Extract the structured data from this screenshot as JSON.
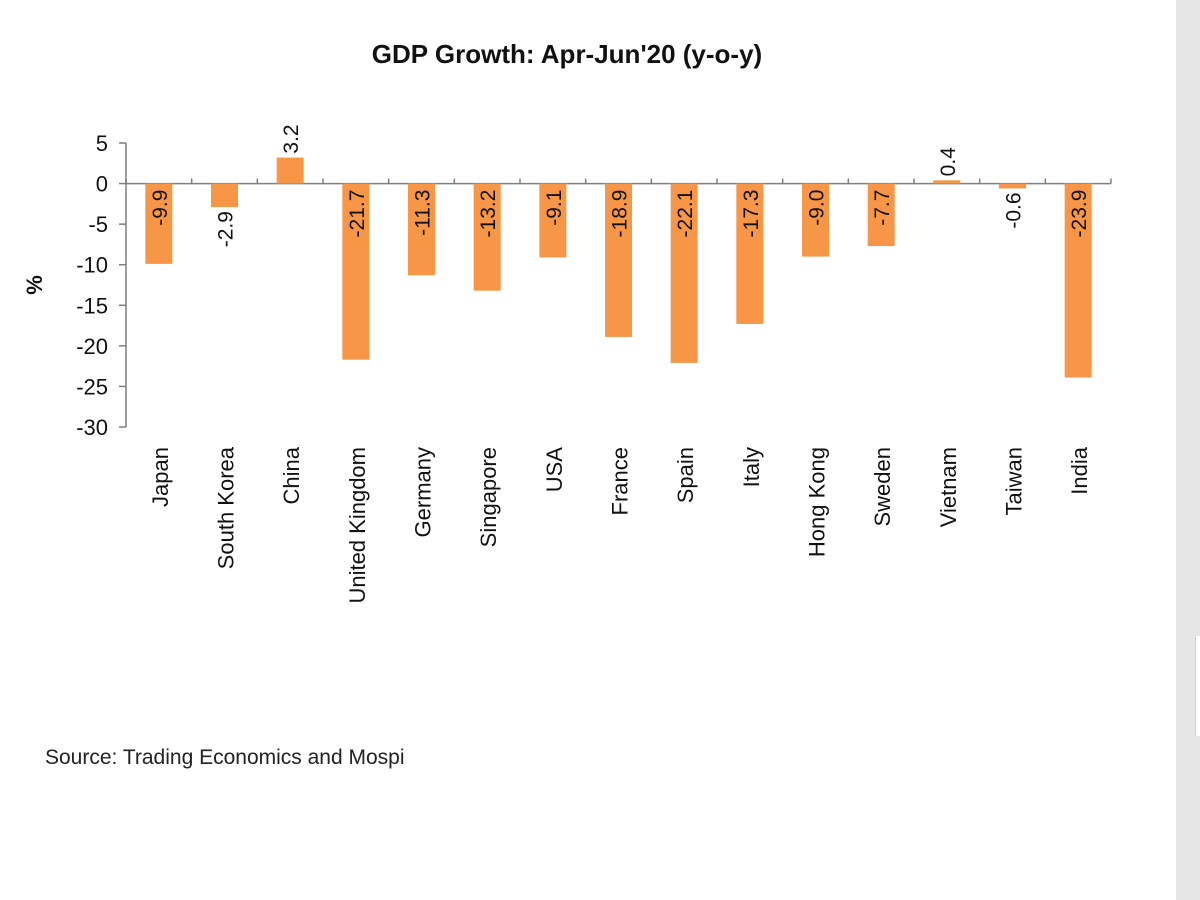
{
  "chart_data": {
    "type": "bar",
    "title": "GDP Growth: Apr-Jun'20 (y-o-y)",
    "xlabel": "",
    "ylabel": "%",
    "ylim": [
      -30,
      5
    ],
    "yticks": [
      5,
      0,
      -5,
      -10,
      -15,
      -20,
      -25,
      -30
    ],
    "categories": [
      "Japan",
      "South Korea",
      "China",
      "United Kingdom",
      "Germany",
      "Singapore",
      "USA",
      "France",
      "Spain",
      "Italy",
      "Hong Kong",
      "Sweden",
      "Vietnam",
      "Taiwan",
      "India"
    ],
    "values": [
      -9.9,
      -2.9,
      3.2,
      -21.7,
      -11.3,
      -13.2,
      -9.1,
      -18.9,
      -22.1,
      -17.3,
      -9.0,
      -7.7,
      0.4,
      -0.6,
      -23.9
    ],
    "data_labels": [
      "-9.9",
      "-2.9",
      "3.2",
      "-21.7",
      "-11.3",
      "-13.2",
      "-9.1",
      "-18.9",
      "-22.1",
      "-17.3",
      "-9.0",
      "-7.7",
      "0.4",
      "-0.6",
      "-23.9"
    ],
    "bar_color": "#F79646",
    "grid": false,
    "legend": "none"
  },
  "source": "Source: Trading Economics and Mospi"
}
